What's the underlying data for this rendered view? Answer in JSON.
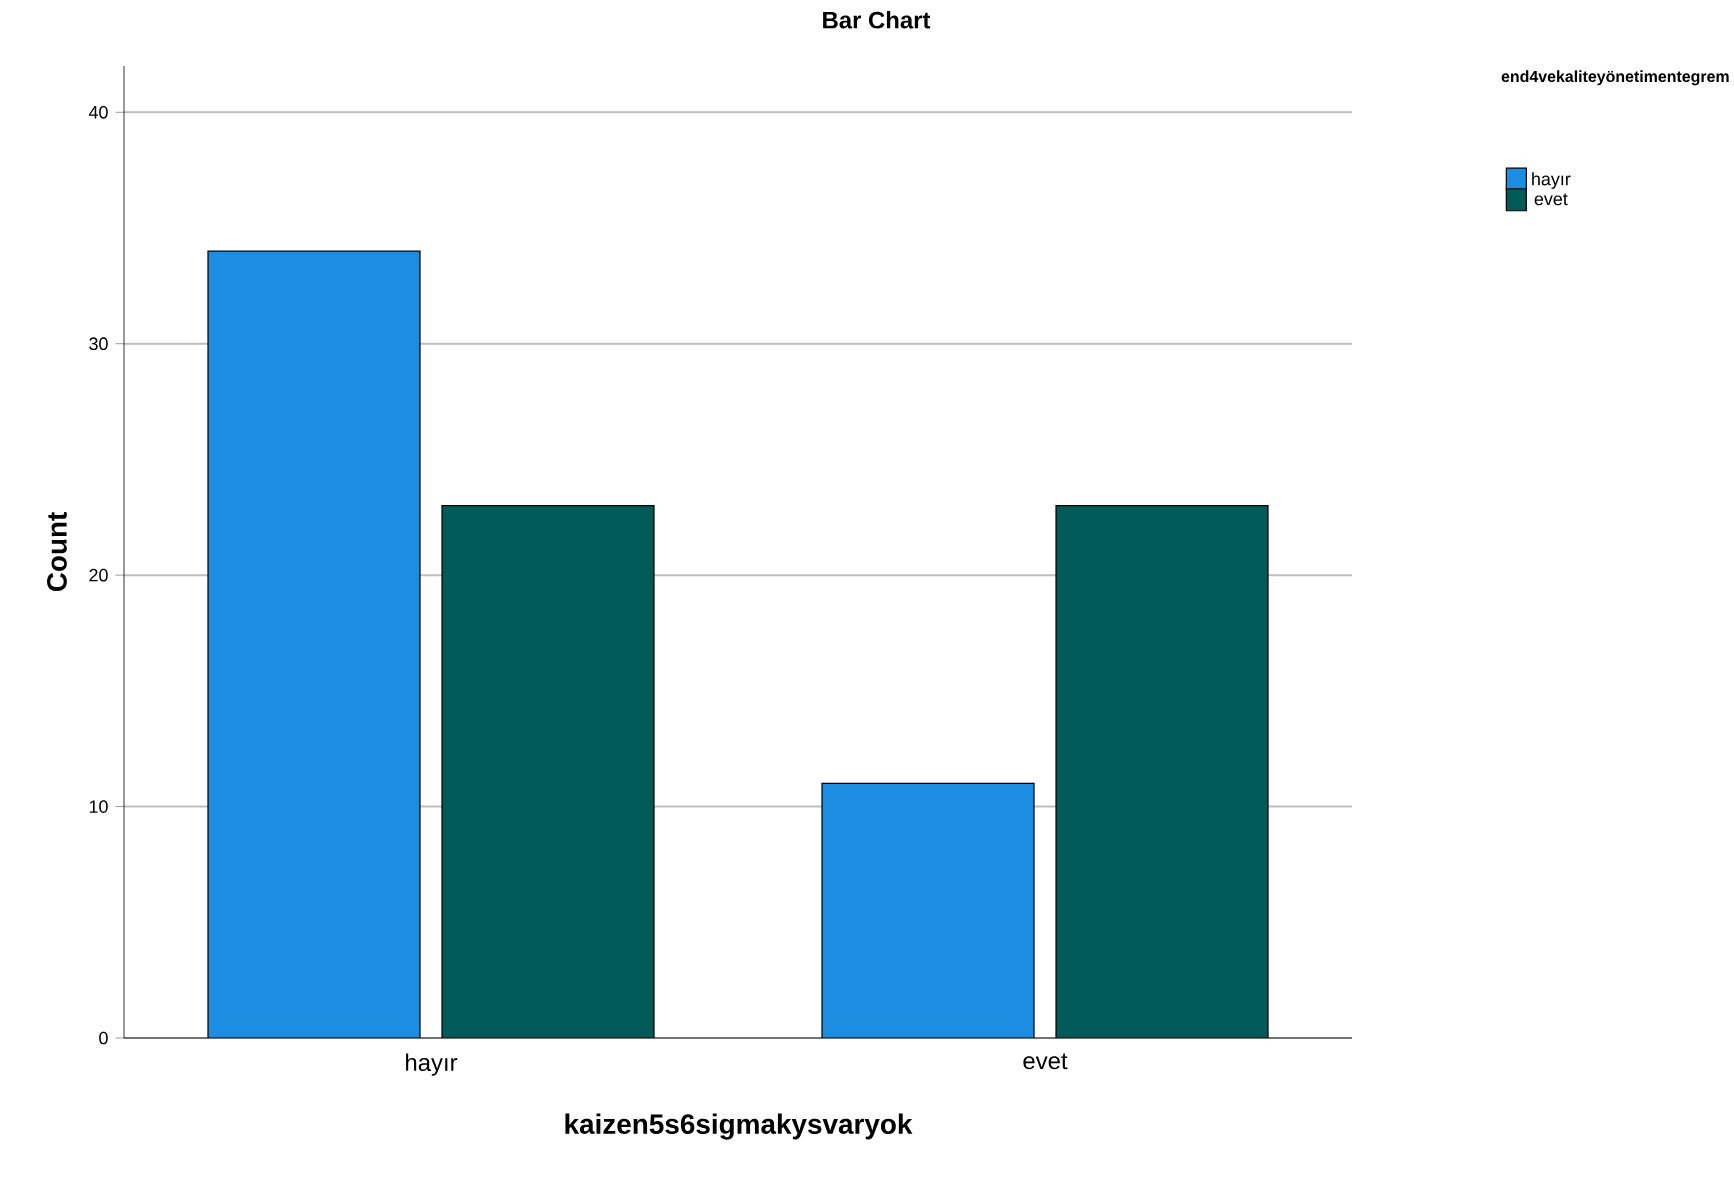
{
  "chart_data": {
    "type": "bar",
    "title": "Bar Chart",
    "xlabel": "kaizen5s6sigmakysvaryok",
    "ylabel": "Count",
    "legend_title": "end4vekaliteyönetimentegrem",
    "categories": [
      "hayır",
      "evet"
    ],
    "series": [
      {
        "name": "hayır",
        "color": "#1c8de0",
        "values": [
          34,
          11
        ]
      },
      {
        "name": "evet",
        "color": "#005b58",
        "values": [
          23,
          23
        ]
      }
    ],
    "ylim": [
      0,
      42
    ],
    "yticks": [
      0,
      10,
      20,
      30,
      40
    ],
    "grid": "y",
    "legend": "top right"
  }
}
